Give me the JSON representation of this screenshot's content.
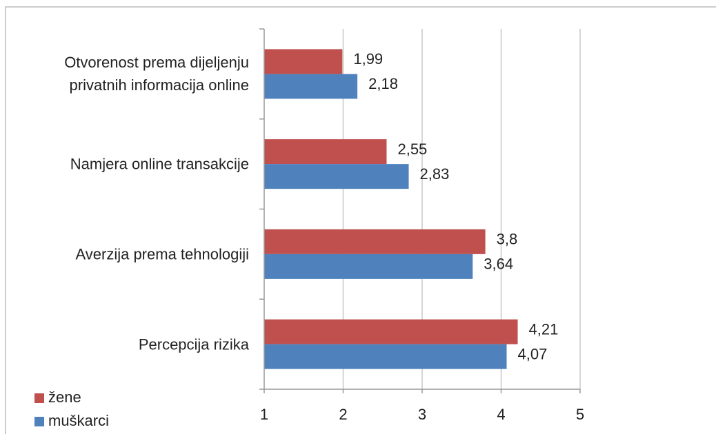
{
  "chart_data": {
    "type": "bar",
    "orientation": "horizontal",
    "categories": [
      "Otvorenost prema dijeljenju\nprivatnih informacija online",
      "Namjera online transakcije",
      "Averzija prema tehnologiji",
      "Percepcija rizika"
    ],
    "series": [
      {
        "name": "žene",
        "color": "#c0504d",
        "values": [
          1.99,
          2.55,
          3.8,
          4.21
        ],
        "value_labels": [
          "1,99",
          "2,55",
          "3,8",
          "4,21"
        ]
      },
      {
        "name": "muškarci",
        "color": "#4f81bd",
        "values": [
          2.18,
          2.83,
          3.64,
          4.07
        ],
        "value_labels": [
          "2,18",
          "2,83",
          "3,64",
          "4,07"
        ]
      }
    ],
    "xlim": [
      1,
      5
    ],
    "xticks": [
      1,
      2,
      3,
      4,
      5
    ],
    "grid": true,
    "legend": "bottom-left"
  }
}
